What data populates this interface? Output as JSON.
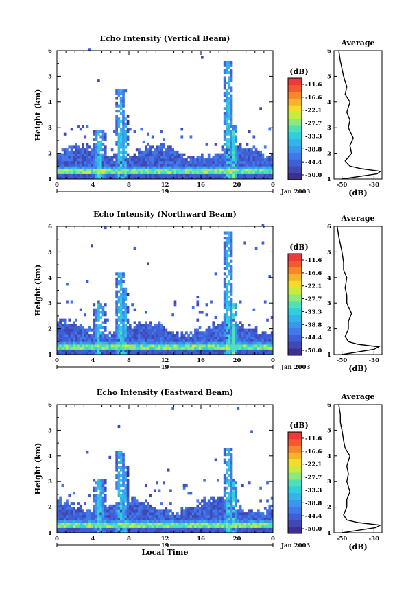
{
  "figure": {
    "date_label": "Jan 2003",
    "day_label": "19",
    "xlabel_bottom": "Local Time",
    "colorbar_unit": "(dB)",
    "colorbar_labels": [
      "-11.6",
      "-16.6",
      "-22.1",
      "-27.7",
      "-33.3",
      "-38.8",
      "-44.4",
      "-50.0"
    ],
    "colormap": [
      "#3d2f8a",
      "#3f48b4",
      "#3f5fd6",
      "#4279ea",
      "#3d96ee",
      "#33b4e8",
      "#2fd0de",
      "#4fe0b8",
      "#8ee87a",
      "#c8ec3e",
      "#f2de2a",
      "#f7b42a",
      "#f7872a",
      "#f45a2e",
      "#ee3a3a"
    ]
  },
  "chart_data": [
    {
      "type": "heatmap",
      "title": "Echo Intensity (Vertical Beam)",
      "ylabel": "Height (km)",
      "xlabel": "",
      "x_ticks": [
        "0",
        "4",
        "8",
        "12",
        "16",
        "20",
        "0"
      ],
      "y_ticks": [
        "1",
        "2",
        "3",
        "4",
        "5",
        "6"
      ],
      "xlim": [
        0,
        24
      ],
      "ylim": [
        1,
        6
      ],
      "value_range": [
        -50.0,
        -11.6
      ],
      "units": "dB",
      "profile": {
        "title": "Average",
        "xlabel": "(dB)",
        "x_ticks": [
          "-50",
          "-30"
        ],
        "xlim": [
          -55,
          -25
        ],
        "heights": [
          1.0,
          1.2,
          1.3,
          1.4,
          1.5,
          1.7,
          2.0,
          2.3,
          2.6,
          3.0,
          3.3,
          3.6,
          4.0,
          4.3,
          4.6,
          5.0,
          5.3,
          5.6,
          6.0
        ],
        "values": [
          -50,
          -28,
          -26,
          -38,
          -45,
          -48,
          -44,
          -45,
          -43,
          -46,
          -45,
          -47,
          -45,
          -48,
          -47,
          -49,
          -50,
          -51,
          -52
        ]
      }
    },
    {
      "type": "heatmap",
      "title": "Echo Intensity (Northward Beam)",
      "ylabel": "Height (km)",
      "xlabel": "",
      "x_ticks": [
        "0",
        "4",
        "8",
        "12",
        "16",
        "20",
        "0"
      ],
      "y_ticks": [
        "1",
        "2",
        "3",
        "4",
        "5",
        "6"
      ],
      "xlim": [
        0,
        24
      ],
      "ylim": [
        1,
        6
      ],
      "value_range": [
        -50.0,
        -11.6
      ],
      "units": "dB",
      "profile": {
        "title": "Average",
        "xlabel": "(dB)",
        "x_ticks": [
          "-50",
          "-30"
        ],
        "xlim": [
          -55,
          -25
        ],
        "heights": [
          1.0,
          1.2,
          1.3,
          1.4,
          1.5,
          1.7,
          2.0,
          2.3,
          2.6,
          3.0,
          3.3,
          3.6,
          4.0,
          4.3,
          4.6,
          5.0,
          5.3,
          5.6,
          6.0
        ],
        "values": [
          -50,
          -30,
          -27,
          -40,
          -46,
          -48,
          -46,
          -46,
          -44,
          -47,
          -47,
          -48,
          -47,
          -49,
          -49,
          -50,
          -51,
          -52,
          -53
        ]
      }
    },
    {
      "type": "heatmap",
      "title": "Echo Intensity (Eastward Beam)",
      "ylabel": "Height (km)",
      "xlabel": "Local Time",
      "x_ticks": [
        "0",
        "4",
        "8",
        "12",
        "16",
        "20",
        "0"
      ],
      "y_ticks": [
        "1",
        "2",
        "3",
        "4",
        "5",
        "6"
      ],
      "xlim": [
        0,
        24
      ],
      "ylim": [
        1,
        6
      ],
      "value_range": [
        -50.0,
        -11.6
      ],
      "units": "dB",
      "profile": {
        "title": "Average",
        "xlabel": "(dB)",
        "x_ticks": [
          "-50",
          "-30"
        ],
        "xlim": [
          -55,
          -25
        ],
        "heights": [
          1.0,
          1.2,
          1.3,
          1.4,
          1.5,
          1.7,
          2.0,
          2.3,
          2.6,
          3.0,
          3.3,
          3.6,
          4.0,
          4.3,
          4.6,
          5.0,
          5.3,
          5.6,
          6.0
        ],
        "values": [
          -50,
          -29,
          -26,
          -40,
          -47,
          -49,
          -47,
          -47,
          -45,
          -47,
          -46,
          -47,
          -45,
          -48,
          -49,
          -50,
          -51,
          -51,
          -52
        ]
      }
    }
  ]
}
